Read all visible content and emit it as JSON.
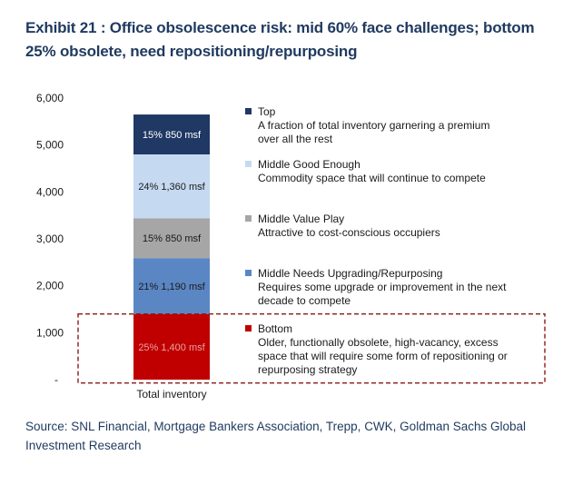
{
  "title": "Exhibit 21 : Office obsolescence risk: mid 60% face challenges; bottom 25% obsolete, need repositioning/repurposing",
  "source": "Source: SNL Financial, Mortgage Bankers Association, Trepp, CWK, Goldman Sachs Global Investment Research",
  "colors": {
    "title": "#1f3a5f",
    "highlight_box": "#8b1a1a"
  },
  "chart_data": {
    "type": "bar",
    "stacked": true,
    "categories": [
      "Total inventory"
    ],
    "ylim": [
      0,
      6000
    ],
    "y_ticks": [
      {
        "value": 0,
        "label": "-"
      },
      {
        "value": 1000,
        "label": "1,000"
      },
      {
        "value": 2000,
        "label": "2,000"
      },
      {
        "value": 3000,
        "label": "3,000"
      },
      {
        "value": 4000,
        "label": "4,000"
      },
      {
        "value": 5000,
        "label": "5,000"
      },
      {
        "value": 6000,
        "label": "6,000"
      }
    ],
    "series": [
      {
        "name": "Bottom",
        "value": 1400,
        "bar_label": "25% 1,400 msf",
        "color": "#c00000",
        "label_color": "#e8a0a0",
        "description": [
          "Older, functionally obsolete, high-vacancy, excess",
          "space that will require some form of repositioning or",
          "repurposing strategy"
        ]
      },
      {
        "name": "Middle Needs Upgrading/Repurposing",
        "value": 1190,
        "bar_label": "21% 1,190 msf",
        "color": "#5b86c4",
        "label_color": "#1a1a1a",
        "description": [
          "Requires some upgrade or improvement in the next",
          "decade to compete"
        ]
      },
      {
        "name": "Middle Value Play",
        "value": 850,
        "bar_label": "15% 850 msf",
        "color": "#a6a6a6",
        "label_color": "#1a1a1a",
        "description": [
          "Attractive to cost-conscious occupiers"
        ]
      },
      {
        "name": "Middle Good Enough",
        "value": 1360,
        "bar_label": "24% 1,360 msf",
        "color": "#c5d9f1",
        "label_color": "#1a1a1a",
        "description": [
          "Commodity space that will continue to compete"
        ]
      },
      {
        "name": "Top",
        "value": 850,
        "bar_label": "15% 850 msf",
        "color": "#1f3864",
        "label_color": "#ffffff",
        "description": [
          "A fraction of total inventory garnering a premium",
          "over all the rest"
        ]
      }
    ],
    "highlighted_series": "Bottom",
    "grid": false
  }
}
